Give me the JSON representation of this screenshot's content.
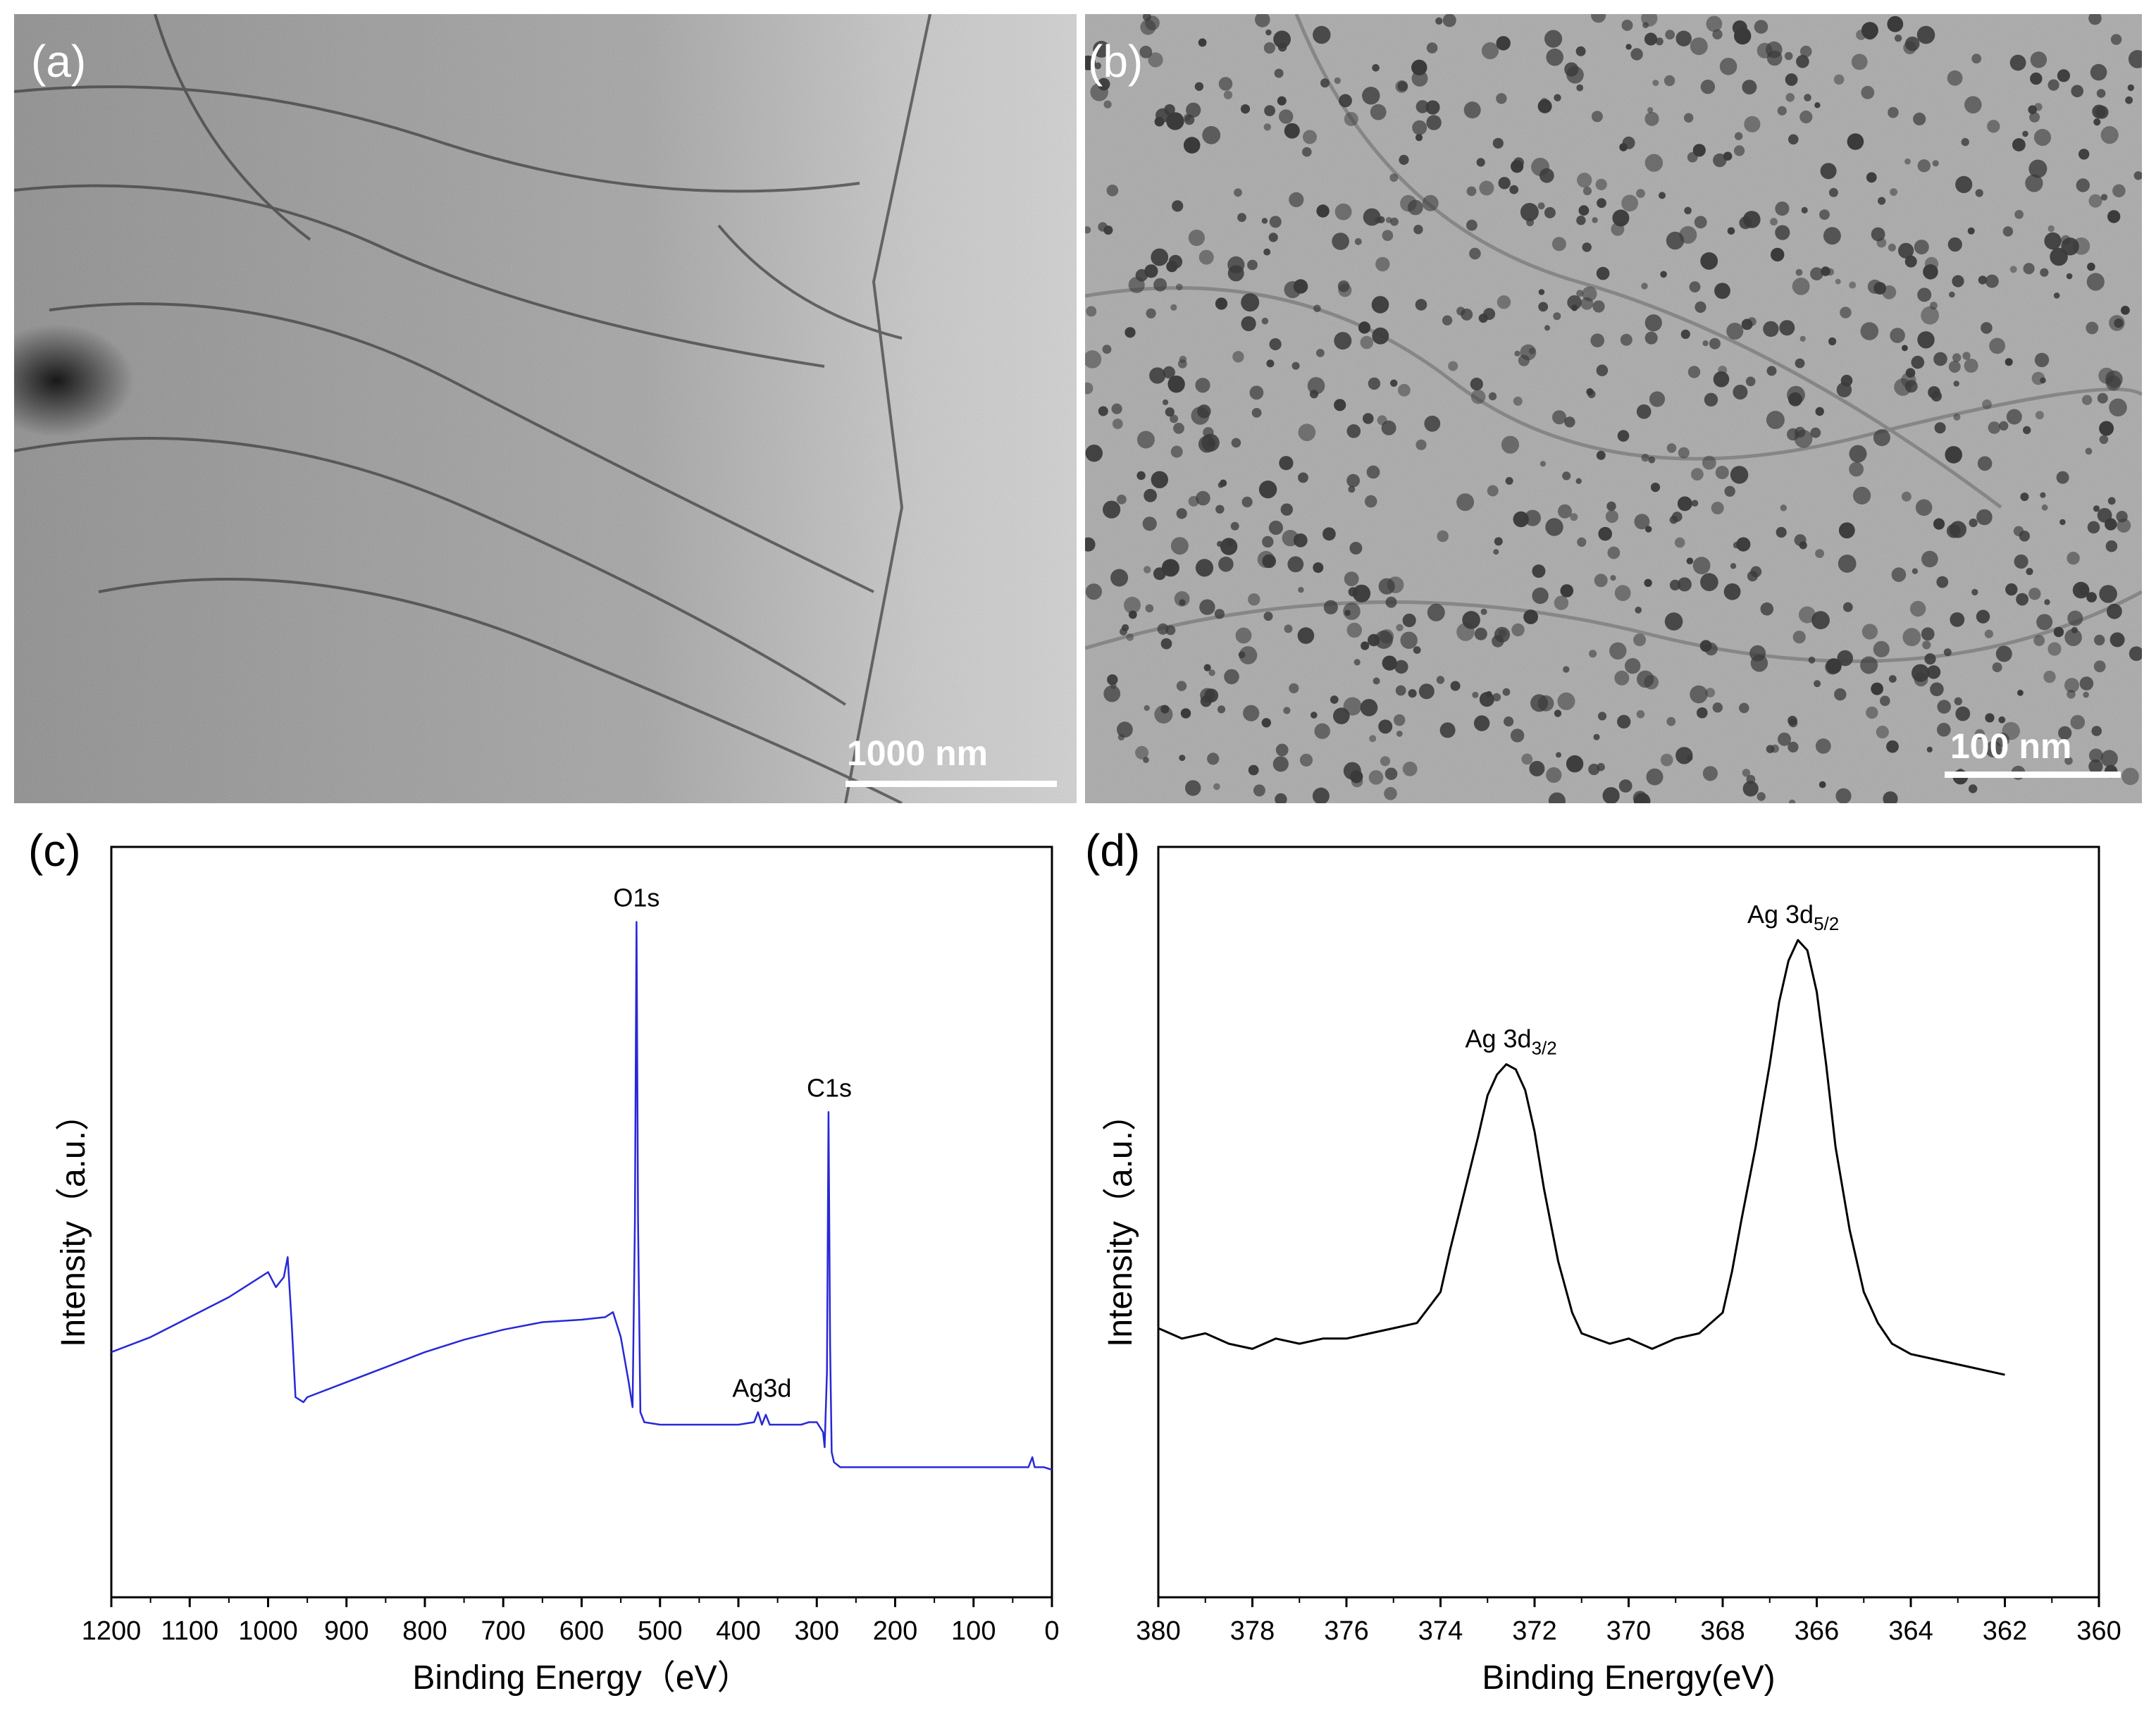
{
  "panels": {
    "a": {
      "letter": "(a)",
      "scale_label": "1000 nm"
    },
    "b": {
      "letter": "(b)",
      "scale_label": "100 nm"
    },
    "c": {
      "letter": "(c)"
    },
    "d": {
      "letter": "(d)"
    }
  },
  "chart_data": [
    {
      "type": "line",
      "panel": "c",
      "xlabel": "Binding Energy（eV）",
      "ylabel": "Intensity（a.u.）",
      "xlim": [
        1200,
        0
      ],
      "x_reversed": true,
      "xticks": [
        1200,
        1100,
        1000,
        900,
        800,
        700,
        600,
        500,
        400,
        300,
        200,
        100,
        0
      ],
      "line_color": "#2828d8",
      "series": [
        {
          "x": [
            1200,
            1150,
            1100,
            1050,
            1020,
            1000,
            990,
            980,
            975,
            970,
            965,
            955,
            950,
            900,
            850,
            800,
            750,
            700,
            650,
            600,
            570,
            560,
            550,
            540,
            535,
            532,
            530,
            528,
            525,
            520,
            500,
            450,
            400,
            380,
            375,
            370,
            365,
            360,
            340,
            320,
            310,
            300,
            292,
            290,
            287,
            285,
            283,
            281,
            278,
            270,
            250,
            200,
            150,
            100,
            50,
            30,
            25,
            22,
            10,
            0
          ],
          "y": [
            0.14,
            0.17,
            0.21,
            0.25,
            0.28,
            0.3,
            0.27,
            0.29,
            0.33,
            0.2,
            0.05,
            0.04,
            0.05,
            0.08,
            0.11,
            0.14,
            0.165,
            0.185,
            0.2,
            0.205,
            0.21,
            0.22,
            0.17,
            0.08,
            0.03,
            0.4,
            1.0,
            0.4,
            0.02,
            0.0,
            -0.005,
            -0.005,
            -0.005,
            0.0,
            0.02,
            -0.005,
            0.015,
            -0.005,
            -0.005,
            -0.005,
            0.0,
            0.0,
            -0.02,
            -0.05,
            0.1,
            0.62,
            0.15,
            -0.06,
            -0.08,
            -0.09,
            -0.09,
            -0.09,
            -0.09,
            -0.09,
            -0.09,
            -0.09,
            -0.07,
            -0.09,
            -0.09,
            -0.095
          ]
        }
      ],
      "annotations": [
        {
          "text": "O1s",
          "x": 530
        },
        {
          "text": "C1s",
          "x": 284
        },
        {
          "text": "Ag3d",
          "x": 370
        }
      ]
    },
    {
      "type": "line",
      "panel": "d",
      "xlabel": "Binding Energy(eV)",
      "ylabel": "Intensity（a.u.）",
      "xlim": [
        380,
        360
      ],
      "x_reversed": true,
      "xticks": [
        380,
        378,
        376,
        374,
        372,
        370,
        368,
        366,
        364,
        362,
        360
      ],
      "line_color": "#000000",
      "series": [
        {
          "x": [
            380,
            379.5,
            379,
            378.5,
            378,
            377.5,
            377,
            376.5,
            376,
            375.5,
            375,
            374.5,
            374,
            373.8,
            373.5,
            373.2,
            373,
            372.8,
            372.6,
            372.4,
            372.2,
            372,
            371.8,
            371.5,
            371.2,
            371,
            370.7,
            370.4,
            370,
            369.5,
            369,
            368.5,
            368,
            367.8,
            367.6,
            367.3,
            367,
            366.8,
            366.6,
            366.4,
            366.2,
            366,
            365.8,
            365.6,
            365.3,
            365,
            364.7,
            364.4,
            364,
            363.5,
            363,
            362.5,
            362
          ],
          "y": [
            0.07,
            0.05,
            0.06,
            0.04,
            0.03,
            0.05,
            0.04,
            0.05,
            0.05,
            0.06,
            0.07,
            0.08,
            0.14,
            0.22,
            0.33,
            0.44,
            0.52,
            0.56,
            0.58,
            0.57,
            0.53,
            0.45,
            0.34,
            0.2,
            0.1,
            0.06,
            0.05,
            0.04,
            0.05,
            0.03,
            0.05,
            0.06,
            0.1,
            0.18,
            0.28,
            0.42,
            0.58,
            0.7,
            0.78,
            0.82,
            0.8,
            0.72,
            0.58,
            0.42,
            0.26,
            0.14,
            0.08,
            0.04,
            0.02,
            0.01,
            0.0,
            -0.01,
            -0.02
          ]
        }
      ],
      "annotations": [
        {
          "text": "Ag 3d",
          "sub": "3/2",
          "x": 372.5
        },
        {
          "text": "Ag 3d",
          "sub": "5/2",
          "x": 366.5
        }
      ]
    }
  ]
}
